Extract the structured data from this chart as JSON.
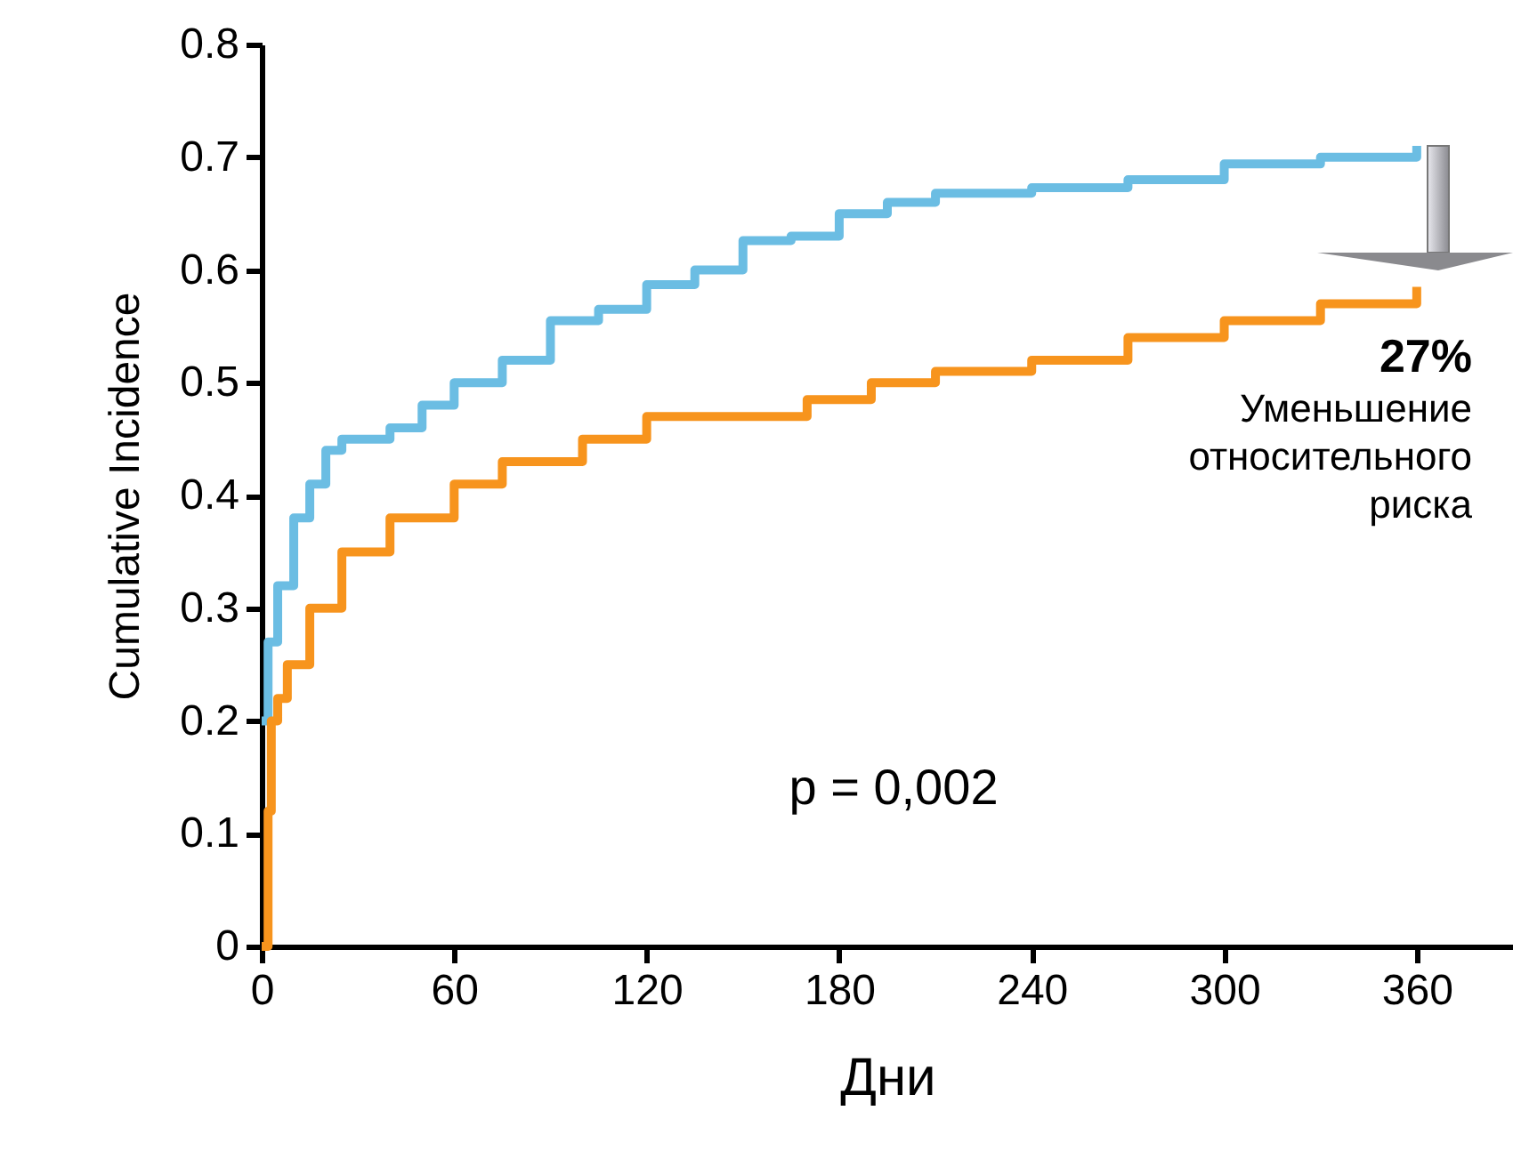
{
  "chart_data": {
    "type": "step",
    "xlabel": "Дни",
    "ylabel": "Cumulative Incidence",
    "xlim": [
      0,
      390
    ],
    "xticks": [
      0,
      60,
      120,
      180,
      240,
      300,
      360
    ],
    "ylim": [
      0,
      0.8
    ],
    "yticks": [
      0,
      0.1,
      0.2,
      0.3,
      0.4,
      0.5,
      0.6,
      0.7,
      0.8
    ],
    "grid": false,
    "legend": false,
    "series": [
      {
        "color": "#6bbde3",
        "x": [
          0,
          2,
          5,
          10,
          15,
          20,
          25,
          40,
          50,
          60,
          75,
          90,
          105,
          120,
          135,
          150,
          165,
          180,
          195,
          210,
          240,
          270,
          300,
          330,
          360
        ],
        "values": [
          0.2,
          0.27,
          0.32,
          0.38,
          0.41,
          0.44,
          0.45,
          0.46,
          0.48,
          0.5,
          0.52,
          0.555,
          0.565,
          0.587,
          0.6,
          0.626,
          0.63,
          0.65,
          0.66,
          0.668,
          0.673,
          0.68,
          0.694,
          0.7,
          0.71
        ]
      },
      {
        "color": "#f7941d",
        "x": [
          0,
          2,
          3,
          5,
          8,
          15,
          25,
          40,
          60,
          75,
          100,
          120,
          140,
          170,
          190,
          210,
          240,
          270,
          300,
          330,
          360
        ],
        "values": [
          0,
          0.12,
          0.2,
          0.22,
          0.25,
          0.3,
          0.35,
          0.38,
          0.41,
          0.43,
          0.45,
          0.47,
          0.47,
          0.485,
          0.5,
          0.51,
          0.52,
          0.54,
          0.555,
          0.57,
          0.585
        ]
      }
    ],
    "annotations": [
      "27%",
      "Уменьшение относительного риска",
      "p = 0,002"
    ]
  }
}
